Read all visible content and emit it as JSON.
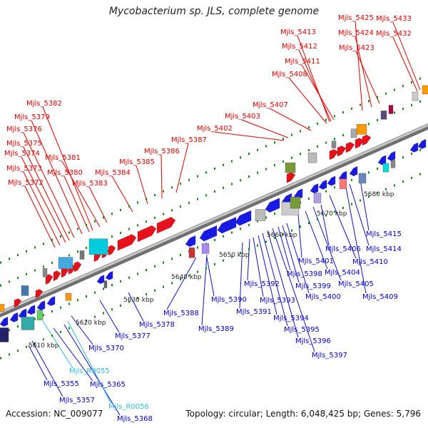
{
  "title": "Mycobacterium sp. JLS, complete genome",
  "accession_text": "Accession: NC_009077",
  "summary_text": "Topology: circular; Length: 6,048,425 bp; Genes: 5,796",
  "colors": {
    "forward": "#e00000",
    "reverse": "#0000dd",
    "rna": "#33bbdd",
    "backbone": "#999999",
    "tick": "#007700"
  },
  "ruler_labels": [
    "5610 kbp",
    "5620 kbp",
    "5630 kbp",
    "5640 kbp",
    "5650 kbp",
    "5660 kbp",
    "5670 kbp",
    "5680 kbp"
  ],
  "top_gene_labels": [
    "Mjls_5382",
    "Mjls_5379",
    "Mjls_5376",
    "Mjls_5375",
    "Mjls_5374",
    "Mjls_5373",
    "Mjls_5372",
    "Mjls_5381",
    "Mjls_5380",
    "Mjls_5383",
    "Mjls_5384",
    "Mjls_5385",
    "Mjls_5386",
    "Mjls_5387",
    "Mjls_5402",
    "Mjls_5403",
    "Mjls_5407",
    "Mjls_5408",
    "Mjls_5411",
    "Mjls_5412",
    "Mjls_5413",
    "Mjls_5423",
    "Mjls_5424",
    "Mjls_5425",
    "Mjls_5432",
    "Mjls_5433"
  ],
  "bottom_gene_labels": [
    "Mjls_5355",
    "Mjls_5357",
    "Mjls_5365",
    "Mjls_5368",
    "Mjls_5370",
    "Mjls_5377",
    "Mjls_5378",
    "Mjls_5388",
    "Mjls_5389",
    "Mjls_5390",
    "Mjls_5391",
    "Mjls_5392",
    "Mjls_5393",
    "Mjls_5394",
    "Mjls_5395",
    "Mjls_5396",
    "Mjls_5397",
    "Mjls_5398",
    "Mjls_5399",
    "Mjls_5400",
    "Mjls_5401",
    "Mjls_5404",
    "Mjls_5405",
    "Mjls_5406",
    "Mjls_5409",
    "Mjls_5410",
    "Mjls_5414",
    "Mjls_5415"
  ],
  "rna_labels": [
    "Mjls_R0055",
    "Mjls_R0056"
  ]
}
